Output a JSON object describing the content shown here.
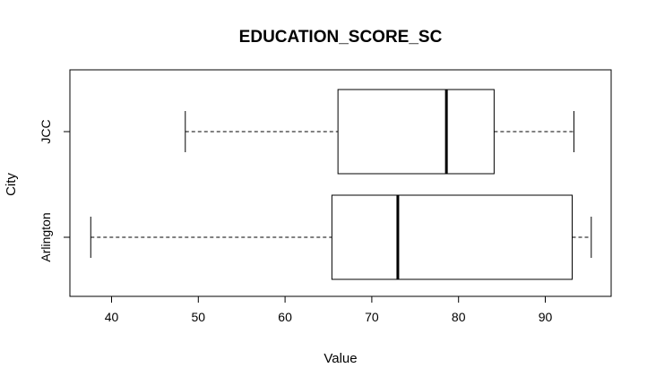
{
  "chart_data": {
    "type": "boxplot",
    "orientation": "horizontal",
    "title": "EDUCATION_SCORE_SC",
    "xlabel": "Value",
    "ylabel": "City",
    "xlim": [
      35,
      97
    ],
    "xticks": [
      40,
      50,
      60,
      70,
      80,
      90
    ],
    "categories": [
      "Arlington",
      "JCC"
    ],
    "boxes": [
      {
        "category": "Arlington",
        "whisker_low": 37.6,
        "q1": 65.4,
        "median": 73.0,
        "q3": 93.1,
        "whisker_high": 95.3
      },
      {
        "category": "JCC",
        "whisker_low": 48.5,
        "q1": 66.1,
        "median": 78.6,
        "q3": 84.1,
        "whisker_high": 93.3
      }
    ],
    "grid": false,
    "colors": {
      "box_fill": "#ffffff",
      "stroke": "#000000"
    }
  }
}
